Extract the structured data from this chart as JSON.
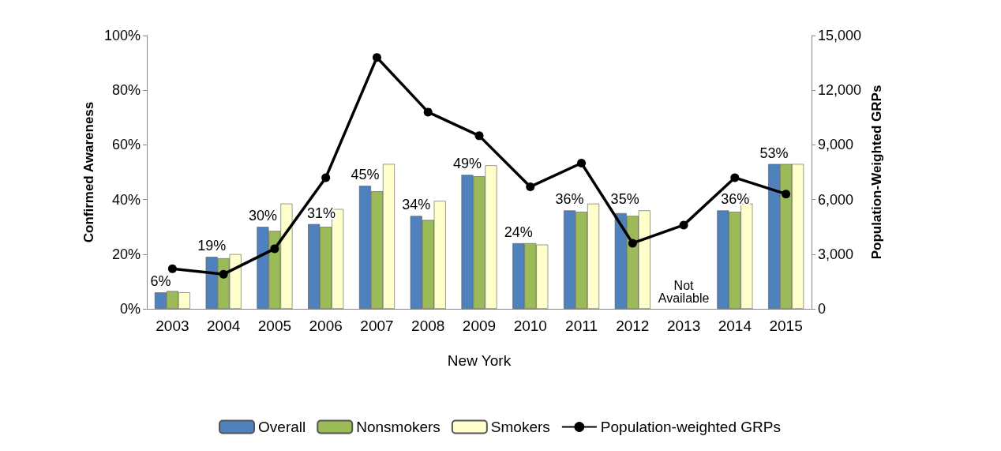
{
  "chart_data": {
    "type": "bar",
    "xlabel": "New York",
    "ylabel": "Confirmed Awareness",
    "y2label": "Population-Weighted GRPs",
    "categories": [
      "2003",
      "2004",
      "2005",
      "2006",
      "2007",
      "2008",
      "2009",
      "2010",
      "2011",
      "2012",
      "2013",
      "2014",
      "2015"
    ],
    "series": [
      {
        "name": "Overall",
        "color": "#4f81bd",
        "values": [
          6,
          19,
          30,
          31,
          45,
          34,
          49,
          24,
          36,
          35,
          null,
          36,
          53
        ],
        "value_labels": [
          "6%",
          "19%",
          "30%",
          "31%",
          "45%",
          "34%",
          "49%",
          "24%",
          "36%",
          "35%",
          null,
          "36%",
          "53%"
        ]
      },
      {
        "name": "Nonsmokers",
        "color": "#9bbb59",
        "values": [
          6.5,
          18.5,
          28.5,
          30,
          43,
          32.5,
          48.5,
          24,
          35.5,
          34,
          null,
          35.5,
          53
        ]
      },
      {
        "name": "Smokers",
        "color": "#ffffcc",
        "values": [
          6,
          20,
          38.5,
          36.5,
          53,
          39.5,
          52.5,
          23.5,
          38.5,
          36,
          null,
          38.5,
          53
        ]
      },
      {
        "name": "Population-weighted GRPs",
        "type": "line",
        "axis": "y2",
        "color": "#000000",
        "marker": "circle",
        "values": [
          2200,
          1900,
          3300,
          7200,
          13800,
          10800,
          9500,
          6700,
          8000,
          3600,
          4600,
          7200,
          6300
        ]
      }
    ],
    "ylim": [
      0,
      100
    ],
    "yticks": [
      {
        "value": 0,
        "label": "0%"
      },
      {
        "value": 20,
        "label": "20%"
      },
      {
        "value": 40,
        "label": "40%"
      },
      {
        "value": 60,
        "label": "60%"
      },
      {
        "value": 80,
        "label": "80%"
      },
      {
        "value": 100,
        "label": "100%"
      }
    ],
    "y2lim": [
      0,
      15000
    ],
    "y2ticks": [
      {
        "value": 0,
        "label": "0"
      },
      {
        "value": 3000,
        "label": "3,000"
      },
      {
        "value": 6000,
        "label": "6,000"
      },
      {
        "value": 9000,
        "label": "9,000"
      },
      {
        "value": 12000,
        "label": "12,000"
      },
      {
        "value": 15000,
        "label": "15,000"
      }
    ],
    "annotations": [
      "Not Available"
    ],
    "grid": false,
    "legend": "bottom"
  }
}
